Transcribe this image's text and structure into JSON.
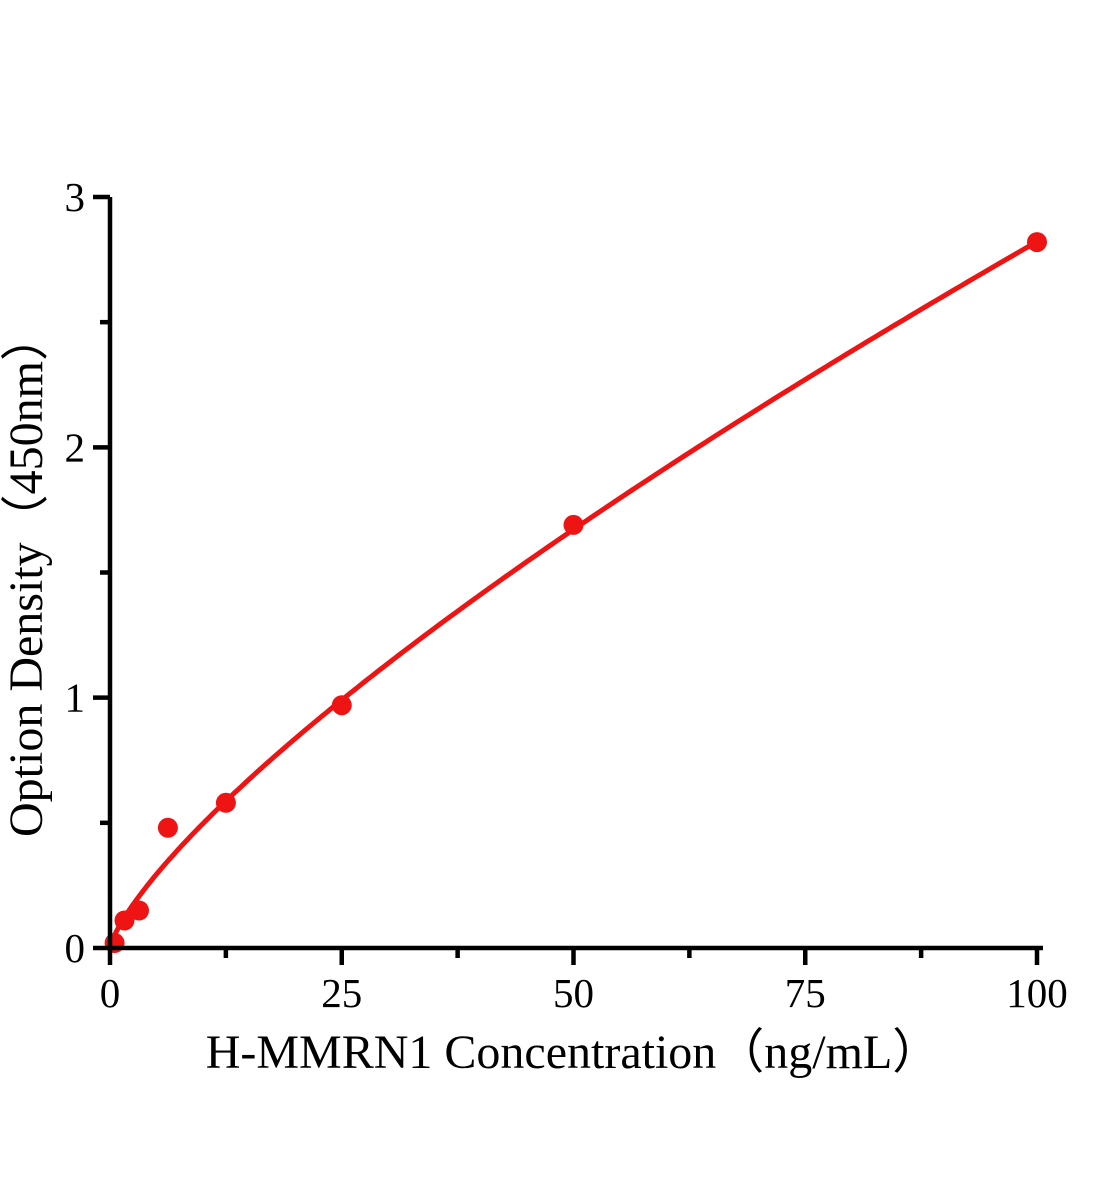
{
  "chart_data": {
    "type": "scatter",
    "subtype": "standard-curve-with-fit",
    "title": "",
    "xlabel": "H-MMRN1 Concentration（ng/mL）",
    "ylabel": "Option Density（450nm）",
    "xlim": [
      0,
      100
    ],
    "ylim": [
      0,
      3
    ],
    "x_major_ticks": [
      0,
      25,
      50,
      75,
      100
    ],
    "x_minor_ticks": [
      12.5,
      37.5,
      62.5,
      87.5
    ],
    "y_major_ticks": [
      0,
      1,
      2,
      3
    ],
    "y_minor_ticks": [
      0.5,
      1.5,
      2.5
    ],
    "points": [
      {
        "x": 0.5,
        "y": 0.02
      },
      {
        "x": 1.56,
        "y": 0.11
      },
      {
        "x": 3.13,
        "y": 0.15
      },
      {
        "x": 6.25,
        "y": 0.48
      },
      {
        "x": 12.5,
        "y": 0.58
      },
      {
        "x": 25,
        "y": 0.97
      },
      {
        "x": 50,
        "y": 1.69
      },
      {
        "x": 100,
        "y": 2.82
      }
    ],
    "fit_curve": {
      "model": "power",
      "a": 0.0872,
      "b": 0.755,
      "x_start": 0,
      "x_end": 100
    },
    "series_color": "#ee1414",
    "axis_color": "#000000",
    "background_color": "#ffffff",
    "grid": false,
    "legend": false
  }
}
